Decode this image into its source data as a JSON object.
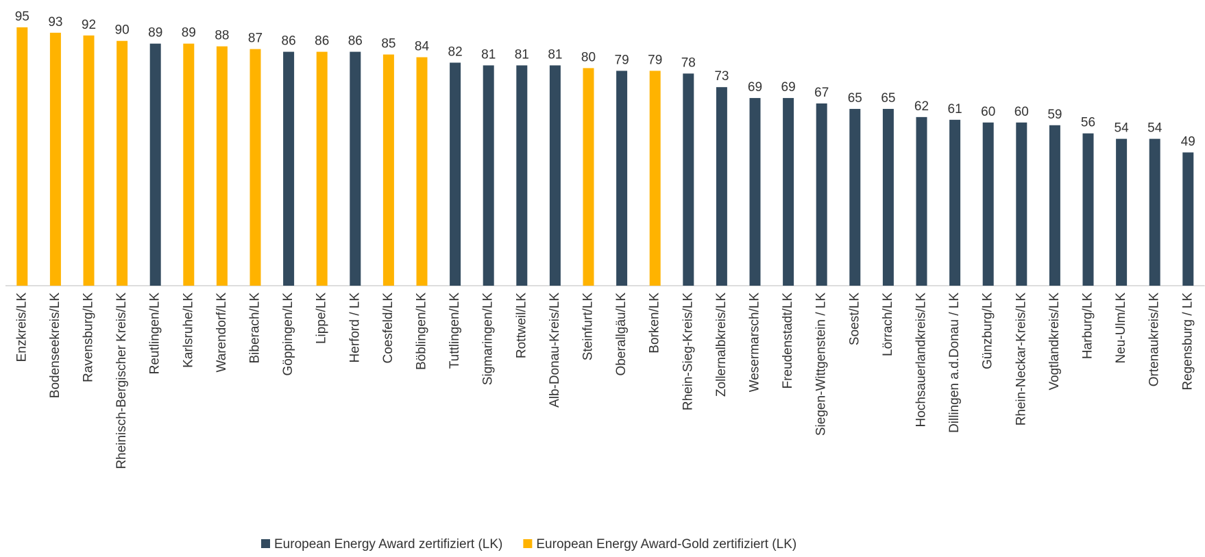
{
  "chart_data": {
    "type": "bar",
    "categories": [
      "Enzkreis/LK",
      "Bodenseekreis/LK",
      "Ravensburg/LK",
      "Rheinisch-Bergischer Kreis/LK",
      "Reutlingen/LK",
      "Karlsruhe/LK",
      "Warendorf/LK",
      "Biberach/LK",
      "Göppingen/LK",
      "Lippe/LK",
      "Herford / LK",
      "Coesfeld/LK",
      "Böblingen/LK",
      "Tuttlingen/LK",
      "Sigmaringen/LK",
      "Rottweil/LK",
      "Alb-Donau-Kreis/LK",
      "Steinfurt/LK",
      "Oberallgäu/LK",
      "Borken/LK",
      "Rhein-Sieg-Kreis/LK",
      "Zollernalbkreis/LK",
      "Wesermarsch/LK",
      "Freudenstadt/LK",
      "Siegen-Wittgenstein / LK",
      "Soest/LK",
      "Lörrach/LK",
      "Hochsauerlandkreis/LK",
      "Dillingen a.d.Donau / LK",
      "Günzburg/LK",
      "Rhein-Neckar-Kreis/LK",
      "Vogtlandkreis/LK",
      "Harburg/LK",
      "Neu-Ulm/LK",
      "Ortenaukreis/LK",
      "Regensburg / LK"
    ],
    "series": [
      {
        "name": "European Energy Award zertifiziert (LK)",
        "color": "#324a5e",
        "values": [
          null,
          null,
          null,
          null,
          89,
          null,
          null,
          null,
          86,
          null,
          86,
          null,
          null,
          82,
          81,
          81,
          81,
          null,
          79,
          null,
          78,
          73,
          69,
          69,
          67,
          65,
          65,
          62,
          61,
          60,
          60,
          59,
          56,
          54,
          54,
          49
        ]
      },
      {
        "name": "European Energy Award-Gold zertifiziert (LK)",
        "color": "#ffb300",
        "values": [
          95,
          93,
          92,
          90,
          null,
          89,
          88,
          87,
          null,
          86,
          null,
          85,
          84,
          null,
          null,
          null,
          null,
          80,
          null,
          79,
          null,
          null,
          null,
          null,
          null,
          null,
          null,
          null,
          null,
          null,
          null,
          null,
          null,
          null,
          null,
          null
        ]
      }
    ],
    "ylim": [
      0,
      100
    ],
    "legend": "bottom"
  }
}
